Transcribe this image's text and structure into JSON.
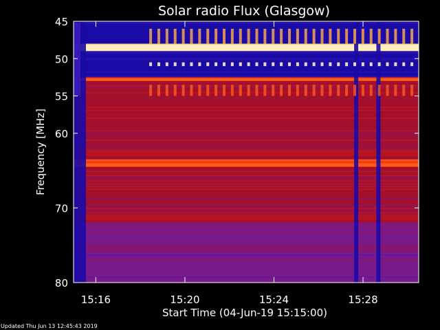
{
  "chart_data": {
    "type": "heatmap",
    "title": "Solar radio Flux (Glasgow)",
    "xlabel": "Start Time (04-Jun-19 15:15:00)",
    "ylabel": "Frequency [MHz]",
    "xlim": [
      "15:15:00",
      "15:30:30"
    ],
    "ylim": [
      45,
      80
    ],
    "y_axis_inverted": true,
    "y_ticks": [
      "45",
      "50",
      "55",
      "60",
      "70",
      "80"
    ],
    "x_ticks": [
      "15:16",
      "15:20",
      "15:24",
      "15:28"
    ],
    "colormap": [
      "#1a0aa6",
      "#3d1cb8",
      "#7a1a8a",
      "#a3102e",
      "#d41c12",
      "#ff5a1a",
      "#ffb04a",
      "#fff2c0"
    ],
    "bands": [
      {
        "mhz_from": 45.0,
        "mhz_to": 48.0,
        "level": "low"
      },
      {
        "mhz_from": 48.0,
        "mhz_to": 49.0,
        "level": "very-high"
      },
      {
        "mhz_from": 49.0,
        "mhz_to": 52.5,
        "level": "low"
      },
      {
        "mhz_from": 52.5,
        "mhz_to": 53.0,
        "level": "high"
      },
      {
        "mhz_from": 53.0,
        "mhz_to": 55.0,
        "level": "medium"
      },
      {
        "mhz_from": 55.0,
        "mhz_to": 63.5,
        "level": "medium"
      },
      {
        "mhz_from": 63.5,
        "mhz_to": 64.5,
        "level": "high"
      },
      {
        "mhz_from": 64.5,
        "mhz_to": 72.0,
        "level": "medium"
      },
      {
        "mhz_from": 72.0,
        "mhz_to": 80.0,
        "level": "low-medium"
      }
    ],
    "gaps_minutes": [
      0.0,
      12.6,
      13.6
    ]
  },
  "footer": {
    "updated": "Updated Thu Jun 13 12:45:43 2019"
  }
}
